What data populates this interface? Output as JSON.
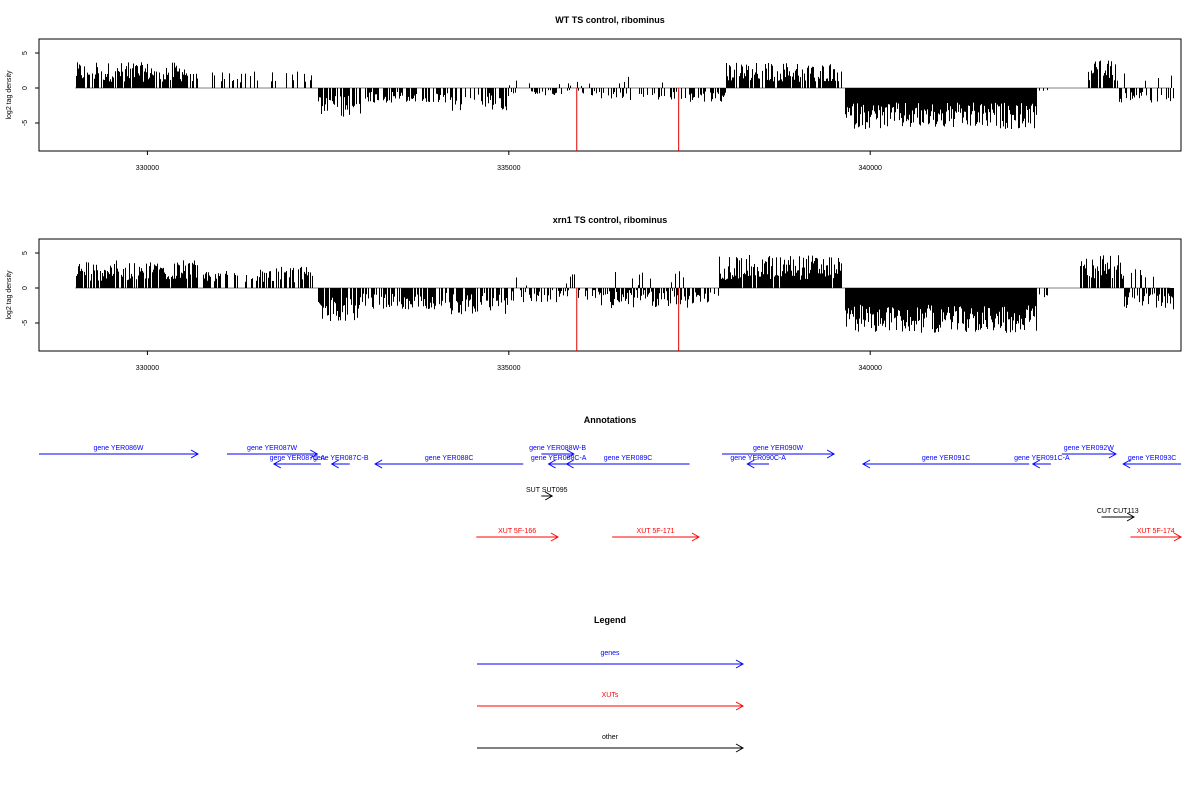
{
  "chart_data": [
    {
      "type": "bar",
      "title": "WT TS control, ribominus",
      "xlabel": "",
      "ylabel": "log2 tag density",
      "xlim": [
        328500,
        344300
      ],
      "ylim": [
        -9,
        7
      ],
      "xticks": [
        330000,
        335000,
        340000
      ],
      "yticks": [
        -5,
        0,
        5
      ],
      "markers": [
        335940,
        337350
      ],
      "marker_color": "#e00000",
      "segments": [
        {
          "from": 329000,
          "to": 330700,
          "mean": 2.0,
          "amp": 1.4,
          "sign": 1,
          "density": 0.8
        },
        {
          "from": 330700,
          "to": 331700,
          "mean": 1.4,
          "amp": 0.8,
          "sign": 1,
          "density": 0.28
        },
        {
          "from": 331700,
          "to": 332300,
          "mean": 1.5,
          "amp": 0.8,
          "sign": 1,
          "density": 0.3
        },
        {
          "from": 332350,
          "to": 332950,
          "mean": -2.3,
          "amp": 1.6,
          "sign": -1,
          "density": 0.75
        },
        {
          "from": 332950,
          "to": 334200,
          "mean": -1.2,
          "amp": 0.8,
          "sign": -1,
          "density": 0.55
        },
        {
          "from": 334200,
          "to": 335000,
          "mean": -1.6,
          "amp": 1.4,
          "sign": -1,
          "density": 0.6
        },
        {
          "from": 335000,
          "to": 336200,
          "mean": -0.6,
          "amp": 0.4,
          "sign": 0,
          "density": 0.35
        },
        {
          "from": 336200,
          "to": 337500,
          "mean": -1.0,
          "amp": 0.6,
          "sign": 0,
          "density": 0.45
        },
        {
          "from": 337500,
          "to": 338000,
          "mean": -1.1,
          "amp": 0.8,
          "sign": -1,
          "density": 0.6
        },
        {
          "from": 338000,
          "to": 339600,
          "mean": 2.0,
          "amp": 1.4,
          "sign": 1,
          "density": 0.85
        },
        {
          "from": 339650,
          "to": 342300,
          "mean": -3.6,
          "amp": 1.9,
          "sign": -1,
          "density": 1.0
        },
        {
          "from": 342300,
          "to": 342500,
          "mean": -0.6,
          "amp": 0.4,
          "sign": -1,
          "density": 0.2
        },
        {
          "from": 343000,
          "to": 343400,
          "mean": 2.2,
          "amp": 1.5,
          "sign": 1,
          "density": 0.8
        },
        {
          "from": 343400,
          "to": 344200,
          "mean": -1.2,
          "amp": 0.8,
          "sign": 0,
          "density": 0.55
        }
      ]
    },
    {
      "type": "bar",
      "title": "xrn1 TS control, ribominus",
      "xlabel": "",
      "ylabel": "log2 tag density",
      "xlim": [
        328500,
        344300
      ],
      "ylim": [
        -9,
        7
      ],
      "xticks": [
        330000,
        335000,
        340000
      ],
      "yticks": [
        -5,
        0,
        5
      ],
      "markers": [
        335940,
        337350
      ],
      "marker_color": "#e00000",
      "segments": [
        {
          "from": 329000,
          "to": 330700,
          "mean": 2.2,
          "amp": 1.5,
          "sign": 1,
          "density": 0.85
        },
        {
          "from": 330700,
          "to": 331700,
          "mean": 1.6,
          "amp": 0.9,
          "sign": 1,
          "density": 0.5
        },
        {
          "from": 331700,
          "to": 332300,
          "mean": 1.7,
          "amp": 1.2,
          "sign": 1,
          "density": 0.55
        },
        {
          "from": 332350,
          "to": 332950,
          "mean": -2.6,
          "amp": 1.8,
          "sign": -1,
          "density": 0.8
        },
        {
          "from": 332950,
          "to": 334200,
          "mean": -1.6,
          "amp": 1.2,
          "sign": -1,
          "density": 0.75
        },
        {
          "from": 334200,
          "to": 335000,
          "mean": -1.9,
          "amp": 1.6,
          "sign": -1,
          "density": 0.7
        },
        {
          "from": 335000,
          "to": 336200,
          "mean": -0.9,
          "amp": 1.0,
          "sign": 0,
          "density": 0.6
        },
        {
          "from": 336200,
          "to": 337500,
          "mean": -1.3,
          "amp": 1.3,
          "sign": 0,
          "density": 0.75
        },
        {
          "from": 337500,
          "to": 337900,
          "mean": -1.4,
          "amp": 1.0,
          "sign": -1,
          "density": 0.6
        },
        {
          "from": 337900,
          "to": 339600,
          "mean": 2.6,
          "amp": 1.8,
          "sign": 1,
          "density": 0.95
        },
        {
          "from": 339650,
          "to": 342300,
          "mean": -4.0,
          "amp": 2.0,
          "sign": -1,
          "density": 1.0
        },
        {
          "from": 342300,
          "to": 342500,
          "mean": -0.8,
          "amp": 0.5,
          "sign": -1,
          "density": 0.3
        },
        {
          "from": 342900,
          "to": 343500,
          "mean": 2.6,
          "amp": 1.8,
          "sign": 1,
          "density": 0.85
        },
        {
          "from": 343500,
          "to": 344200,
          "mean": -1.6,
          "amp": 1.2,
          "sign": 0,
          "density": 0.7
        }
      ]
    }
  ],
  "annotations": {
    "title": "Annotations",
    "items": [
      {
        "label": "gene YER086W",
        "start": 328500,
        "end": 330700,
        "dir": 1,
        "row": 0,
        "color": "#0000ff"
      },
      {
        "label": "gene YER087W",
        "start": 331100,
        "end": 332350,
        "dir": 1,
        "row": 0,
        "color": "#0000ff"
      },
      {
        "label": "gene YER087C-A",
        "start": 331750,
        "end": 332400,
        "dir": -1,
        "row": 1,
        "color": "#0000ff"
      },
      {
        "label": "gene YER087C-B",
        "start": 332550,
        "end": 332800,
        "dir": -1,
        "row": 1,
        "color": "#0000ff"
      },
      {
        "label": "gene YER088C",
        "start": 333150,
        "end": 335200,
        "dir": -1,
        "row": 1,
        "color": "#0000ff"
      },
      {
        "label": "gene YER088W-B",
        "start": 335450,
        "end": 335900,
        "dir": 1,
        "row": 0,
        "color": "#0000ff"
      },
      {
        "label": "gene YER088C-A",
        "start": 335550,
        "end": 335830,
        "dir": -1,
        "row": 1,
        "color": "#0000ff"
      },
      {
        "label": "gene YER089C",
        "start": 335800,
        "end": 337500,
        "dir": -1,
        "row": 1,
        "color": "#0000ff"
      },
      {
        "label": "gene YER090W",
        "start": 337950,
        "end": 339500,
        "dir": 1,
        "row": 0,
        "color": "#0000ff"
      },
      {
        "label": "gene YER090C-A",
        "start": 338300,
        "end": 338600,
        "dir": -1,
        "row": 1,
        "color": "#0000ff"
      },
      {
        "label": "gene YER091C",
        "start": 339900,
        "end": 342200,
        "dir": -1,
        "row": 1,
        "color": "#0000ff"
      },
      {
        "label": "gene YER091C-A",
        "start": 342250,
        "end": 342500,
        "dir": -1,
        "row": 1,
        "color": "#0000ff"
      },
      {
        "label": "gene YER092W",
        "start": 342650,
        "end": 343400,
        "dir": 1,
        "row": 0,
        "color": "#0000ff"
      },
      {
        "label": "gene YER093C",
        "start": 343500,
        "end": 344300,
        "dir": -1,
        "row": 1,
        "color": "#0000ff"
      },
      {
        "label": "SUT SUT095",
        "start": 335450,
        "end": 335600,
        "dir": 1,
        "row": 2,
        "color": "#000000"
      },
      {
        "label": "CUT CUT113",
        "start": 343200,
        "end": 343650,
        "dir": 1,
        "row": 3,
        "color": "#000000"
      },
      {
        "label": "XUT 5F-166",
        "start": 334550,
        "end": 335680,
        "dir": 1,
        "row": 4,
        "color": "#ff0000"
      },
      {
        "label": "XUT 5F-171",
        "start": 336430,
        "end": 337630,
        "dir": 1,
        "row": 4,
        "color": "#ff0000"
      },
      {
        "label": "XUT 5F-174",
        "start": 343600,
        "end": 344300,
        "dir": 1,
        "row": 4,
        "color": "#ff0000"
      }
    ]
  },
  "legend": {
    "title": "Legend",
    "items": [
      {
        "label": "genes",
        "color": "#0000ff"
      },
      {
        "label": "XUTs",
        "color": "#ff0000"
      },
      {
        "label": "other",
        "color": "#000000"
      }
    ]
  }
}
